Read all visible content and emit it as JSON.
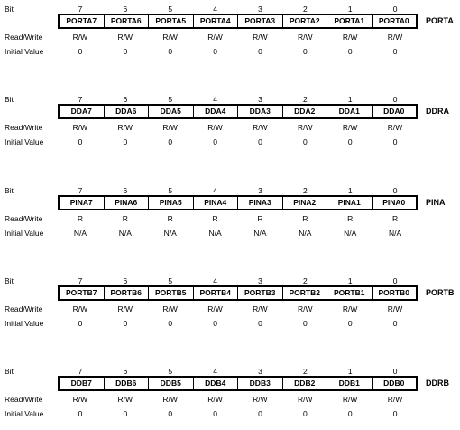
{
  "labels": {
    "bit": "Bit",
    "read_write": "Read/Write",
    "initial_value": "Initial Value"
  },
  "bit_numbers": [
    "7",
    "6",
    "5",
    "4",
    "3",
    "2",
    "1",
    "0"
  ],
  "registers": [
    {
      "name": "PORTA",
      "bits": [
        "PORTA7",
        "PORTA6",
        "PORTA5",
        "PORTA4",
        "PORTA3",
        "PORTA2",
        "PORTA1",
        "PORTA0"
      ],
      "access": [
        "R/W",
        "R/W",
        "R/W",
        "R/W",
        "R/W",
        "R/W",
        "R/W",
        "R/W"
      ],
      "initial": [
        "0",
        "0",
        "0",
        "0",
        "0",
        "0",
        "0",
        "0"
      ]
    },
    {
      "name": "DDRA",
      "bits": [
        "DDA7",
        "DDA6",
        "DDA5",
        "DDA4",
        "DDA3",
        "DDA2",
        "DDA1",
        "DDA0"
      ],
      "access": [
        "R/W",
        "R/W",
        "R/W",
        "R/W",
        "R/W",
        "R/W",
        "R/W",
        "R/W"
      ],
      "initial": [
        "0",
        "0",
        "0",
        "0",
        "0",
        "0",
        "0",
        "0"
      ]
    },
    {
      "name": "PINA",
      "bits": [
        "PINA7",
        "PINA6",
        "PINA5",
        "PINA4",
        "PINA3",
        "PINA2",
        "PINA1",
        "PINA0"
      ],
      "access": [
        "R",
        "R",
        "R",
        "R",
        "R",
        "R",
        "R",
        "R"
      ],
      "initial": [
        "N/A",
        "N/A",
        "N/A",
        "N/A",
        "N/A",
        "N/A",
        "N/A",
        "N/A"
      ]
    },
    {
      "name": "PORTB",
      "bits": [
        "PORTB7",
        "PORTB6",
        "PORTB5",
        "PORTB4",
        "PORTB3",
        "PORTB2",
        "PORTB1",
        "PORTB0"
      ],
      "access": [
        "R/W",
        "R/W",
        "R/W",
        "R/W",
        "R/W",
        "R/W",
        "R/W",
        "R/W"
      ],
      "initial": [
        "0",
        "0",
        "0",
        "0",
        "0",
        "0",
        "0",
        "0"
      ]
    },
    {
      "name": "DDRB",
      "bits": [
        "DDB7",
        "DDB6",
        "DDB5",
        "DDB4",
        "DDB3",
        "DDB2",
        "DDB1",
        "DDB0"
      ],
      "access": [
        "R/W",
        "R/W",
        "R/W",
        "R/W",
        "R/W",
        "R/W",
        "R/W",
        "R/W"
      ],
      "initial": [
        "0",
        "0",
        "0",
        "0",
        "0",
        "0",
        "0",
        "0"
      ]
    }
  ]
}
